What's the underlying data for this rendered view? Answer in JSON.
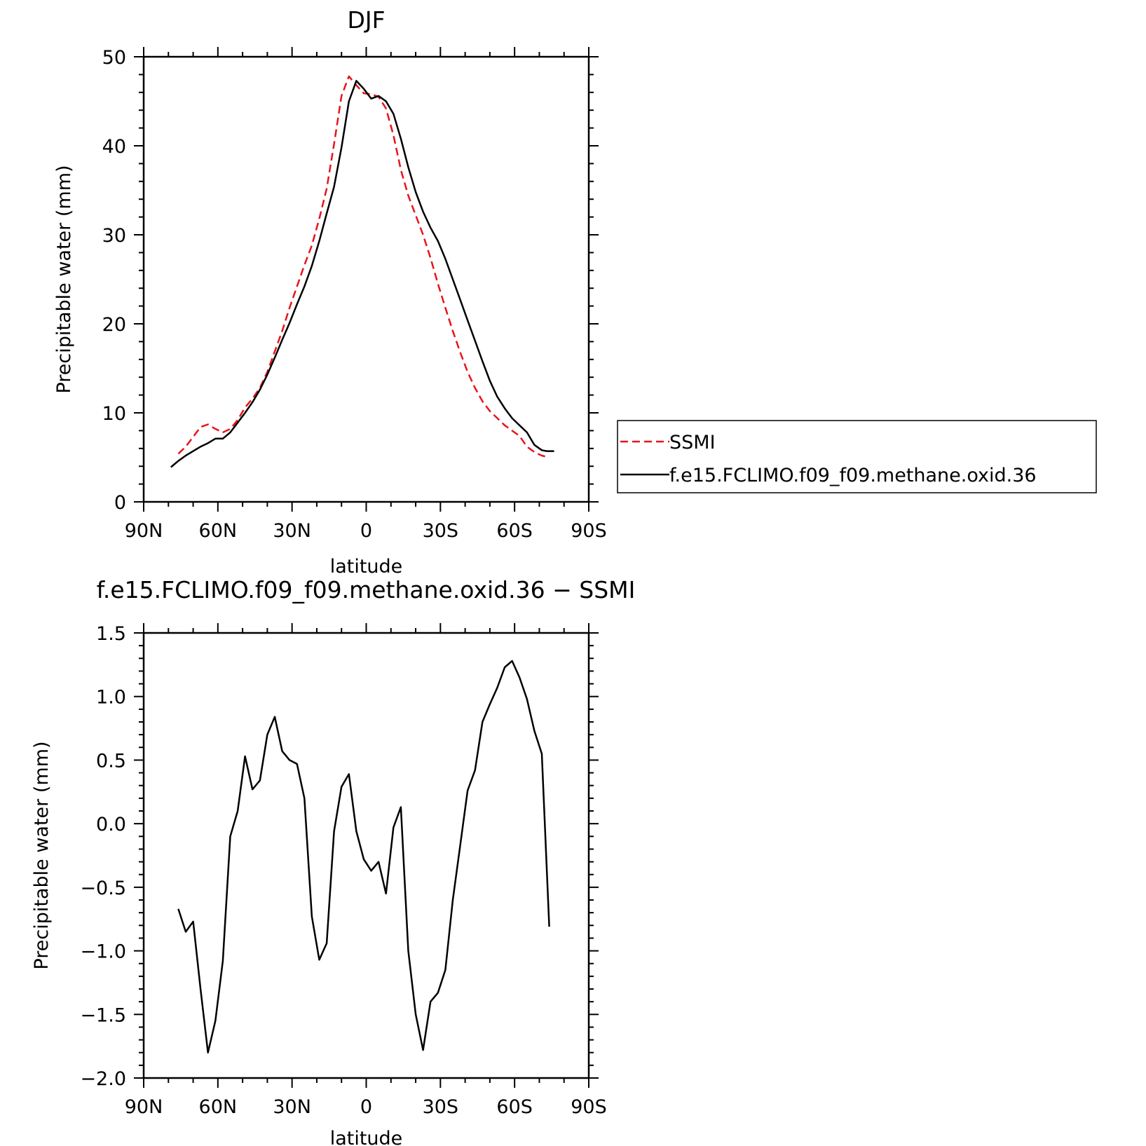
{
  "colors": {
    "ssmi": "#e8141b",
    "model": "#000000",
    "background": "#ffffff"
  },
  "chart_data": [
    {
      "type": "line",
      "title": "DJF",
      "xlabel": "latitude",
      "ylabel": "Precipitable water (mm)",
      "xlim": [
        90,
        -90
      ],
      "ylim": [
        0,
        50
      ],
      "xticks": [
        {
          "value": 90,
          "label": "90N"
        },
        {
          "value": 60,
          "label": "60N"
        },
        {
          "value": 30,
          "label": "30N"
        },
        {
          "value": 0,
          "label": "0"
        },
        {
          "value": -30,
          "label": "30S"
        },
        {
          "value": -60,
          "label": "60S"
        },
        {
          "value": -90,
          "label": "90S"
        }
      ],
      "yticks": [
        {
          "value": 0,
          "label": "0"
        },
        {
          "value": 10,
          "label": "10"
        },
        {
          "value": 20,
          "label": "20"
        },
        {
          "value": 30,
          "label": "30"
        },
        {
          "value": 40,
          "label": "40"
        },
        {
          "value": 50,
          "label": "50"
        }
      ],
      "legend": {
        "placement": "right",
        "entries": [
          "SSMI",
          "f.e15.FCLIMO.f09_f09.methane.oxid.36"
        ]
      },
      "series": [
        {
          "name": "SSMI",
          "style": "dashed",
          "color": "#e8141b",
          "x": [
            76,
            73,
            70,
            67,
            64,
            61,
            58,
            55,
            52,
            49,
            46,
            43,
            40,
            37,
            34,
            31,
            28,
            25,
            22,
            19,
            16,
            13,
            10,
            7,
            4,
            1,
            -2,
            -5,
            -8,
            -11,
            -14,
            -17,
            -20,
            -23,
            -26,
            -29,
            -32,
            -35,
            -38,
            -41,
            -44,
            -47,
            -50,
            -53,
            -56,
            -59,
            -62,
            -65,
            -68,
            -71,
            -74
          ],
          "y": [
            5.4,
            6.2,
            7.3,
            8.4,
            8.7,
            8.2,
            7.8,
            8.2,
            9.2,
            10.6,
            11.6,
            12.8,
            14.6,
            16.9,
            19.2,
            21.8,
            24.2,
            26.6,
            28.8,
            31.8,
            35.2,
            40.2,
            45.6,
            47.8,
            46.8,
            45.9,
            45.8,
            45.5,
            44.2,
            41.2,
            37.3,
            34.4,
            32.2,
            30.0,
            27.4,
            24.5,
            21.8,
            19.2,
            16.8,
            14.6,
            12.8,
            11.3,
            10.2,
            9.4,
            8.6,
            8.0,
            7.4,
            6.2,
            5.6,
            5.2,
            5.0
          ]
        },
        {
          "name": "f.e15.FCLIMO.f09_f09.methane.oxid.36",
          "style": "solid",
          "color": "#000000",
          "x": [
            79,
            76,
            73,
            70,
            67,
            64,
            61,
            58,
            55,
            52,
            49,
            46,
            43,
            40,
            37,
            34,
            31,
            28,
            25,
            22,
            19,
            16,
            13,
            10,
            7,
            4,
            1,
            -2,
            -5,
            -8,
            -11,
            -14,
            -17,
            -20,
            -23,
            -26,
            -29,
            -32,
            -35,
            -38,
            -41,
            -44,
            -47,
            -50,
            -53,
            -56,
            -59,
            -62,
            -65,
            -68,
            -71,
            -73,
            -76
          ],
          "y": [
            3.9,
            4.6,
            5.2,
            5.7,
            6.2,
            6.6,
            7.1,
            7.1,
            7.8,
            8.9,
            10.0,
            11.2,
            12.6,
            14.3,
            16.2,
            18.2,
            20.1,
            22.2,
            24.2,
            26.5,
            29.3,
            32.4,
            35.4,
            39.8,
            45.0,
            47.3,
            46.4,
            45.3,
            45.6,
            45.0,
            43.6,
            40.8,
            37.6,
            34.8,
            32.6,
            30.8,
            29.3,
            27.3,
            25.0,
            22.7,
            20.4,
            18.1,
            15.8,
            13.6,
            11.8,
            10.5,
            9.4,
            8.6,
            7.8,
            6.4,
            5.8,
            5.7,
            5.7
          ]
        }
      ]
    },
    {
      "type": "line",
      "title": "f.e15.FCLIMO.f09_f09.methane.oxid.36 − SSMI",
      "xlabel": "latitude",
      "ylabel": "Precipitable water (mm)",
      "xlim": [
        90,
        -90
      ],
      "ylim": [
        -2.0,
        1.5
      ],
      "xticks": [
        {
          "value": 90,
          "label": "90N"
        },
        {
          "value": 60,
          "label": "60N"
        },
        {
          "value": 30,
          "label": "30N"
        },
        {
          "value": 0,
          "label": "0"
        },
        {
          "value": -30,
          "label": "30S"
        },
        {
          "value": -60,
          "label": "60S"
        },
        {
          "value": -90,
          "label": "90S"
        }
      ],
      "yticks": [
        {
          "value": -2.0,
          "label": "−2.0"
        },
        {
          "value": -1.5,
          "label": "−1.5"
        },
        {
          "value": -1.0,
          "label": "−1.0"
        },
        {
          "value": -0.5,
          "label": "−0.5"
        },
        {
          "value": 0.0,
          "label": "0.0"
        },
        {
          "value": 0.5,
          "label": "0.5"
        },
        {
          "value": 1.0,
          "label": "1.0"
        },
        {
          "value": 1.5,
          "label": "1.5"
        }
      ],
      "series": [
        {
          "style": "solid",
          "color": "#000000",
          "x": [
            76,
            73,
            70,
            67,
            64,
            61,
            58,
            55,
            52,
            49,
            46,
            43,
            40,
            37,
            34,
            31,
            28,
            25,
            22,
            19,
            16,
            13,
            10,
            7,
            4,
            1,
            -2,
            -5,
            -8,
            -11,
            -14,
            -17,
            -20,
            -23,
            -26,
            -29,
            -32,
            -35,
            -38,
            -41,
            -44,
            -47,
            -50,
            -53,
            -56,
            -59,
            -62,
            -65,
            -68,
            -71,
            -74
          ],
          "y": [
            -0.67,
            -0.85,
            -0.77,
            -1.3,
            -1.8,
            -1.55,
            -1.08,
            -0.1,
            0.1,
            0.53,
            0.27,
            0.34,
            0.7,
            0.84,
            0.57,
            0.5,
            0.47,
            0.2,
            -0.73,
            -1.07,
            -0.94,
            -0.06,
            0.29,
            0.39,
            -0.06,
            -0.28,
            -0.37,
            -0.3,
            -0.55,
            -0.03,
            0.13,
            -1.0,
            -1.5,
            -1.78,
            -1.4,
            -1.33,
            -1.15,
            -0.6,
            -0.17,
            0.26,
            0.42,
            0.8,
            0.94,
            1.07,
            1.23,
            1.28,
            1.15,
            0.98,
            0.73,
            0.55,
            -0.81
          ]
        }
      ]
    }
  ]
}
